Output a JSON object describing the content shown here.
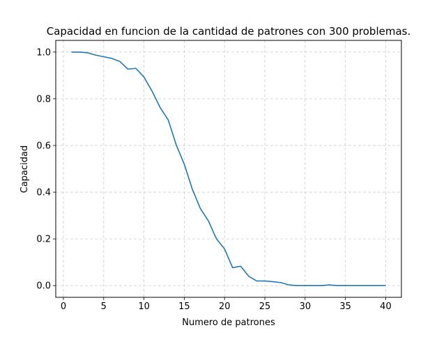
{
  "chart_data": {
    "type": "line",
    "title": "Capacidad en funcion de la cantidad de patrones con 300 problemas.",
    "xlabel": "Numero de patrones",
    "ylabel": "Capacidad",
    "xlim": [
      -0.95,
      41.95
    ],
    "ylim": [
      -0.05,
      1.05
    ],
    "xticks": [
      0,
      5,
      10,
      15,
      20,
      25,
      30,
      35,
      40
    ],
    "xtick_labels": [
      "0",
      "5",
      "10",
      "15",
      "20",
      "25",
      "30",
      "35",
      "40"
    ],
    "yticks": [
      0.0,
      0.2,
      0.4,
      0.6,
      0.8,
      1.0
    ],
    "ytick_labels": [
      "0.0",
      "0.2",
      "0.4",
      "0.6",
      "0.8",
      "1.0"
    ],
    "grid": true,
    "grid_style": "dashed",
    "line_color": "#1f77b4",
    "series": [
      {
        "x": [
          1,
          2,
          3,
          4,
          5,
          6,
          7,
          8,
          9,
          10,
          11,
          12,
          13,
          14,
          15,
          16,
          17,
          18,
          19,
          20,
          21,
          22,
          23,
          24,
          25,
          26,
          27,
          28,
          29,
          30,
          31,
          32,
          33,
          34,
          35,
          36,
          37,
          38,
          39,
          40
        ],
        "values": [
          1.0,
          1.0,
          0.997,
          0.987,
          0.98,
          0.973,
          0.96,
          0.927,
          0.93,
          0.893,
          0.833,
          0.763,
          0.71,
          0.603,
          0.52,
          0.413,
          0.33,
          0.277,
          0.2,
          0.157,
          0.077,
          0.083,
          0.04,
          0.02,
          0.02,
          0.017,
          0.013,
          0.003,
          0.0,
          0.0,
          0.0,
          0.0,
          0.003,
          0.0,
          0.0,
          0.0,
          0.0,
          0.0,
          0.0,
          0.0
        ]
      }
    ]
  }
}
